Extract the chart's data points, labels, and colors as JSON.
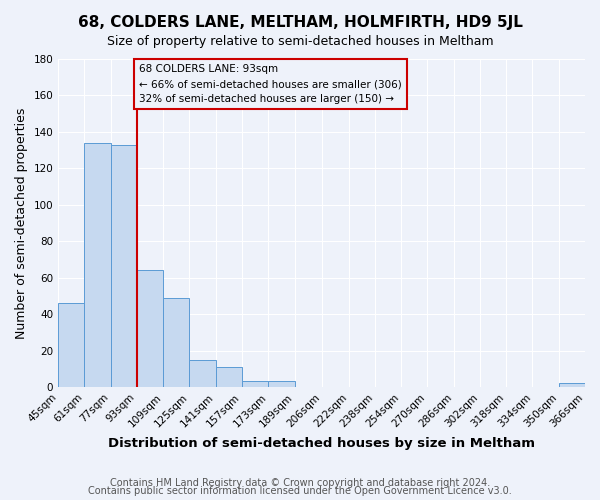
{
  "title": "68, COLDERS LANE, MELTHAM, HOLMFIRTH, HD9 5JL",
  "subtitle": "Size of property relative to semi-detached houses in Meltham",
  "xlabel": "Distribution of semi-detached houses by size in Meltham",
  "ylabel": "Number of semi-detached properties",
  "bin_edges": [
    45,
    61,
    77,
    93,
    109,
    125,
    141,
    157,
    173,
    189,
    206,
    222,
    238,
    254,
    270,
    286,
    302,
    318,
    334,
    350,
    366
  ],
  "bin_labels": [
    "45sqm",
    "61sqm",
    "77sqm",
    "93sqm",
    "109sqm",
    "125sqm",
    "141sqm",
    "157sqm",
    "173sqm",
    "189sqm",
    "206sqm",
    "222sqm",
    "238sqm",
    "254sqm",
    "270sqm",
    "286sqm",
    "302sqm",
    "318sqm",
    "334sqm",
    "350sqm",
    "366sqm"
  ],
  "counts": [
    46,
    134,
    133,
    64,
    49,
    15,
    11,
    3,
    3,
    0,
    0,
    0,
    0,
    0,
    0,
    0,
    0,
    0,
    0,
    2
  ],
  "bar_color": "#c6d9f0",
  "bar_edge_color": "#5b9bd5",
  "property_line_x": 93,
  "property_line_color": "#cc0000",
  "annotation_line1": "68 COLDERS LANE: 93sqm",
  "annotation_line2": "← 66% of semi-detached houses are smaller (306)",
  "annotation_line3": "32% of semi-detached houses are larger (150) →",
  "annotation_box_color": "#cc0000",
  "ylim": [
    0,
    180
  ],
  "yticks": [
    0,
    20,
    40,
    60,
    80,
    100,
    120,
    140,
    160,
    180
  ],
  "footer_line1": "Contains HM Land Registry data © Crown copyright and database right 2024.",
  "footer_line2": "Contains public sector information licensed under the Open Government Licence v3.0.",
  "bg_color": "#eef2fa",
  "grid_color": "#ffffff",
  "title_fontsize": 11,
  "subtitle_fontsize": 9,
  "axis_label_fontsize": 9,
  "tick_fontsize": 7.5,
  "footer_fontsize": 7
}
